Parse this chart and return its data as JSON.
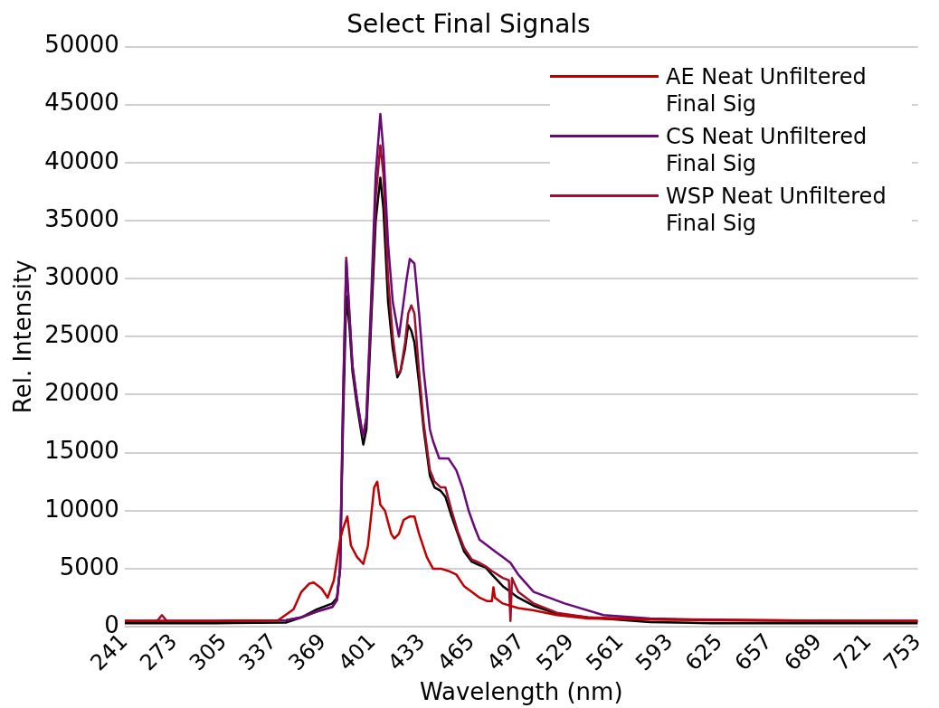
{
  "chart_data": {
    "type": "line",
    "title": "Select Final Signals",
    "xlabel": "Wavelength (nm)",
    "ylabel": "Rel. Intensity",
    "xlim": [
      241,
      753
    ],
    "xticks": [
      241,
      273,
      305,
      337,
      369,
      401,
      433,
      465,
      497,
      529,
      561,
      593,
      625,
      657,
      689,
      721,
      753
    ],
    "ylim": [
      0,
      50000
    ],
    "yticks": [
      0,
      5000,
      10000,
      15000,
      20000,
      25000,
      30000,
      35000,
      40000,
      45000,
      50000
    ],
    "grid": "y",
    "legend": "top right",
    "marker": "none",
    "line_style": "solid",
    "series": [
      {
        "name": "AE Neat Unfiltered Final Sig",
        "color": "#c00000",
        "x": [
          241,
          300,
          340,
          350,
          355,
          360,
          363,
          368,
          372,
          376,
          380,
          382,
          384.7,
          387,
          391,
          395,
          398,
          402,
          404,
          406,
          409,
          413,
          415,
          418,
          421,
          425,
          428,
          431,
          436,
          440,
          445,
          450,
          455,
          460,
          465,
          470,
          475,
          478,
          479,
          480,
          485,
          495,
          505,
          520,
          540,
          580,
          650,
          753
        ],
        "values": [
          500,
          500,
          550,
          1500,
          3000,
          3700,
          3800,
          3300,
          2500,
          4000,
          7500,
          8500,
          9500,
          7000,
          6000,
          5400,
          7000,
          12000,
          12500,
          10500,
          10000,
          8000,
          7600,
          8000,
          9200,
          9500,
          9500,
          8000,
          6000,
          5000,
          5000,
          4800,
          4500,
          3500,
          3000,
          2500,
          2200,
          2200,
          3400,
          2500,
          2000,
          1600,
          1400,
          1000,
          700,
          600,
          550,
          500
        ]
      },
      {
        "name": "CS Neat Unfiltered Final Sig",
        "color": "#6a0a78",
        "x": [
          241,
          300,
          345,
          355,
          365,
          375,
          378,
          380,
          382,
          384,
          386,
          388,
          391,
          394,
          395,
          397,
          400,
          403,
          406,
          408,
          411,
          414,
          418,
          421,
          423,
          425,
          428,
          431,
          434,
          438,
          440,
          444,
          447,
          450,
          455,
          459,
          463,
          467,
          470,
          475,
          480,
          485,
          490,
          495,
          505,
          525,
          550,
          580,
          620,
          700,
          753
        ],
        "values": [
          500,
          500,
          550,
          800,
          1300,
          1700,
          2300,
          5000,
          20000,
          31500,
          27000,
          22500,
          19500,
          17000,
          16500,
          18000,
          28000,
          39000,
          44200,
          41000,
          33000,
          28000,
          25000,
          28000,
          30000,
          31700,
          31300,
          27000,
          22000,
          17000,
          16000,
          14500,
          14500,
          14500,
          13500,
          12000,
          10000,
          8500,
          7500,
          7000,
          6500,
          6000,
          5500,
          4500,
          3000,
          2000,
          1000,
          700,
          600,
          500,
          500
        ]
      },
      {
        "name": "WSP Neat Unfiltered Final Sig",
        "color": "#a0102a",
        "x": [
          241,
          262,
          265,
          268,
          300,
          345,
          355,
          365,
          375,
          378,
          380,
          382,
          384,
          386,
          388,
          391,
          394,
          395,
          397,
          400,
          403,
          406,
          408,
          411,
          414,
          417,
          419,
          422,
          424,
          426,
          428,
          431,
          434,
          438,
          441,
          445,
          448,
          452,
          456,
          460,
          465,
          470,
          474,
          478,
          485,
          489,
          490,
          491,
          495,
          505,
          520,
          540,
          580,
          620,
          700,
          753
        ],
        "values": [
          500,
          500,
          1000,
          500,
          500,
          550,
          800,
          1300,
          1700,
          2300,
          5000,
          20000,
          31800,
          27000,
          22500,
          19500,
          17000,
          16500,
          18000,
          27000,
          37000,
          41500,
          39000,
          30000,
          25000,
          21800,
          22000,
          24500,
          27000,
          27700,
          27000,
          22000,
          17500,
          13500,
          12500,
          12000,
          12000,
          10000,
          8200,
          6800,
          5800,
          5500,
          5200,
          4800,
          4200,
          4000,
          500,
          4200,
          3000,
          2000,
          1200,
          800,
          650,
          550,
          500,
          500
        ]
      },
      {
        "color": "#000000",
        "x": [
          241,
          300,
          345,
          355,
          365,
          375,
          378,
          380,
          382,
          384,
          386,
          388,
          391,
          394,
          395,
          397,
          400,
          403,
          406,
          408,
          411,
          414,
          417,
          419,
          422,
          424,
          426,
          428,
          431,
          434,
          438,
          441,
          445,
          448,
          452,
          456,
          460,
          465,
          470,
          474,
          478,
          485,
          495,
          505,
          520,
          540,
          580,
          620,
          700,
          753
        ],
        "values": [
          300,
          300,
          350,
          800,
          1500,
          2000,
          2500,
          5000,
          18000,
          28500,
          26000,
          22000,
          19000,
          16500,
          15700,
          17000,
          26000,
          35000,
          38700,
          36000,
          28000,
          24000,
          21500,
          22000,
          24000,
          26000,
          25500,
          24500,
          21000,
          17000,
          13000,
          12000,
          11700,
          11200,
          9500,
          8000,
          6500,
          5600,
          5300,
          5100,
          4500,
          3500,
          2500,
          1800,
          1100,
          800,
          400,
          300,
          300,
          300
        ]
      }
    ]
  }
}
